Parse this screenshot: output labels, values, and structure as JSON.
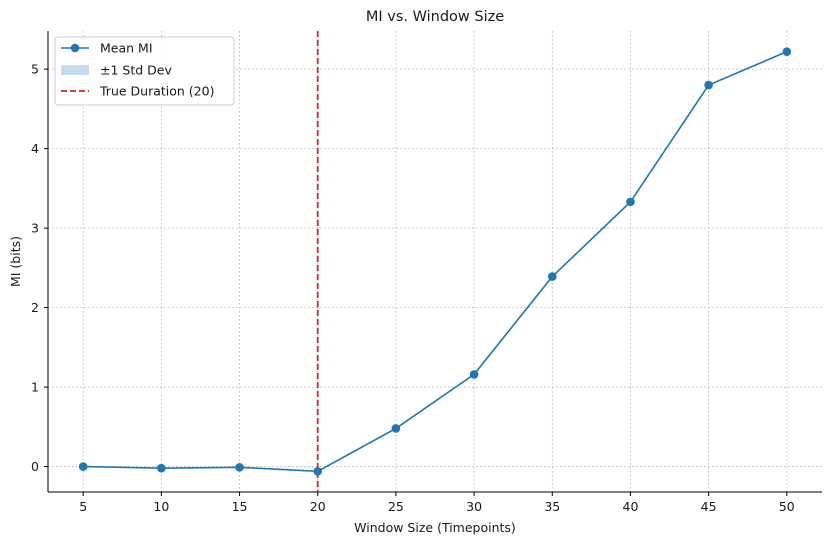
{
  "chart_data": {
    "type": "line",
    "title": "MI vs. Window Size",
    "xlabel": "Window Size (Timepoints)",
    "ylabel": "MI (bits)",
    "x": [
      5,
      10,
      15,
      20,
      25,
      30,
      35,
      40,
      45,
      50
    ],
    "xticks": [
      5,
      10,
      15,
      20,
      25,
      30,
      35,
      40,
      45,
      50
    ],
    "yticks": [
      0,
      1,
      2,
      3,
      4,
      5
    ],
    "xlim": [
      2.75,
      52.25
    ],
    "ylim": [
      -0.32,
      5.48
    ],
    "grid": true,
    "legend_position": "top-left",
    "series": [
      {
        "name": "Mean MI",
        "values": [
          0.0,
          -0.02,
          -0.01,
          -0.06,
          0.48,
          1.16,
          2.39,
          3.33,
          4.8,
          5.22
        ],
        "color": "#1f77b4",
        "marker": "circle"
      }
    ],
    "band": {
      "name": "±1 Std Dev",
      "color": "#c6dbef"
    },
    "vline": {
      "name": "True Duration (20)",
      "x": 20,
      "color": "#d62728",
      "style": "dashed"
    }
  }
}
